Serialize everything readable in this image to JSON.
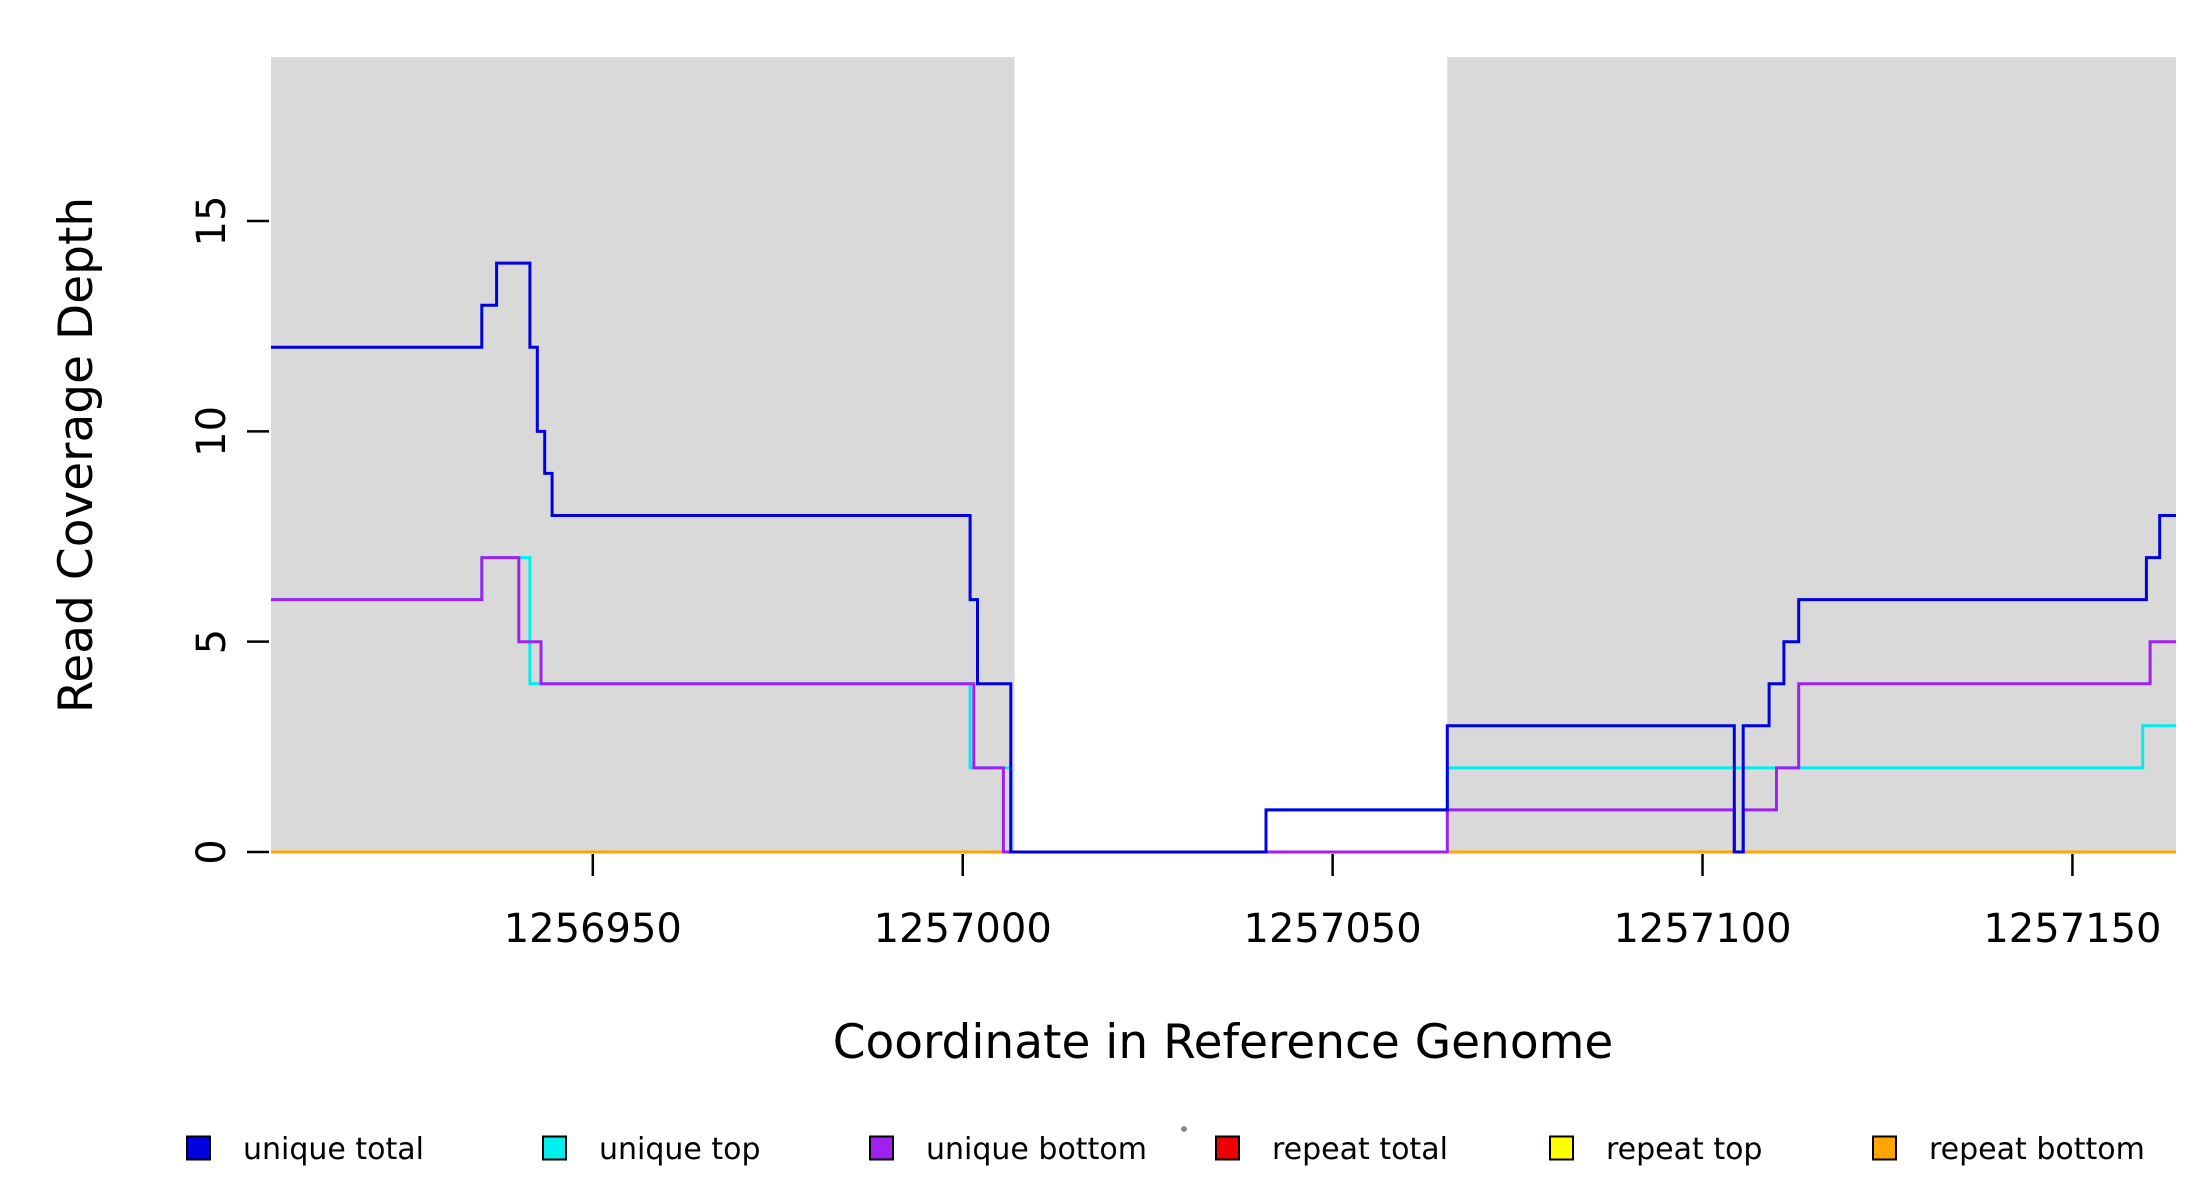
{
  "chart_data": {
    "type": "step-line",
    "title": "",
    "xlabel": "Coordinate in Reference Genome",
    "ylabel": "Read Coverage Depth",
    "xlim": [
      1256906.5,
      1257164
    ],
    "ylim": [
      0,
      18.9
    ],
    "x_ticks": [
      {
        "value": 1256950,
        "label": "1256950"
      },
      {
        "value": 1257000,
        "label": "1257000"
      },
      {
        "value": 1257050,
        "label": "1257050"
      },
      {
        "value": 1257100,
        "label": "1257100"
      },
      {
        "value": 1257150,
        "label": "1257150"
      }
    ],
    "y_ticks": [
      {
        "value": 0,
        "label": "0"
      },
      {
        "value": 5,
        "label": "5"
      },
      {
        "value": 10,
        "label": "10"
      },
      {
        "value": 15,
        "label": "15"
      }
    ],
    "shaded_regions": [
      {
        "from": 1256906.5,
        "to": 1257007,
        "color": "#D9D9D9"
      },
      {
        "from": 1257065.5,
        "to": 1257164,
        "color": "#D9D9D9"
      }
    ],
    "grid": false,
    "series": [
      {
        "name": "repeat total",
        "color": "#EE0000",
        "steps": [
          [
            1256906.5,
            0
          ]
        ]
      },
      {
        "name": "repeat top",
        "color": "#FFFF00",
        "steps": [
          [
            1256906.5,
            0
          ]
        ]
      },
      {
        "name": "repeat bottom",
        "color": "#FFA500",
        "steps": [
          [
            1256906.5,
            0
          ]
        ]
      },
      {
        "name": "unique top",
        "color": "#00EEEE",
        "steps": [
          [
            1256906.5,
            6
          ],
          [
            1256935,
            7
          ],
          [
            1256941.5,
            4
          ],
          [
            1257001,
            2
          ],
          [
            1257006.5,
            0
          ],
          [
            1257041,
            1
          ],
          [
            1257065.5,
            2
          ],
          [
            1257159.5,
            3
          ]
        ]
      },
      {
        "name": "unique bottom",
        "color": "#A020F0",
        "steps": [
          [
            1256906.5,
            6
          ],
          [
            1256935,
            7
          ],
          [
            1256940,
            5
          ],
          [
            1256943,
            4
          ],
          [
            1257001.5,
            2
          ],
          [
            1257005.5,
            0
          ],
          [
            1257065.5,
            1
          ],
          [
            1257104.3,
            0
          ],
          [
            1257105.5,
            1
          ],
          [
            1257110,
            2
          ],
          [
            1257113,
            4
          ],
          [
            1257160.5,
            5
          ]
        ]
      },
      {
        "name": "unique total",
        "color": "#0000E0",
        "steps": [
          [
            1256906.5,
            12
          ],
          [
            1256935,
            13
          ],
          [
            1256937,
            14
          ],
          [
            1256941.5,
            12
          ],
          [
            1256942.5,
            10
          ],
          [
            1256943.5,
            9
          ],
          [
            1256944.5,
            8
          ],
          [
            1257001,
            6
          ],
          [
            1257002,
            4
          ],
          [
            1257006.5,
            0
          ],
          [
            1257041,
            1
          ],
          [
            1257065.5,
            3
          ],
          [
            1257104.3,
            0
          ],
          [
            1257105.5,
            3
          ],
          [
            1257109,
            4
          ],
          [
            1257111,
            5
          ],
          [
            1257113,
            6
          ],
          [
            1257160,
            7
          ],
          [
            1257161.8,
            8
          ]
        ]
      }
    ],
    "legend": {
      "position": "bottom",
      "entries": [
        {
          "label": "unique total",
          "color": "#0000E0"
        },
        {
          "label": "unique top",
          "color": "#00EEEE"
        },
        {
          "label": "unique bottom",
          "color": "#A020F0"
        },
        {
          "label": "repeat total",
          "color": "#EE0000"
        },
        {
          "label": "repeat top",
          "color": "#FFFF00"
        },
        {
          "label": "repeat bottom",
          "color": "#FFA500"
        }
      ]
    }
  }
}
